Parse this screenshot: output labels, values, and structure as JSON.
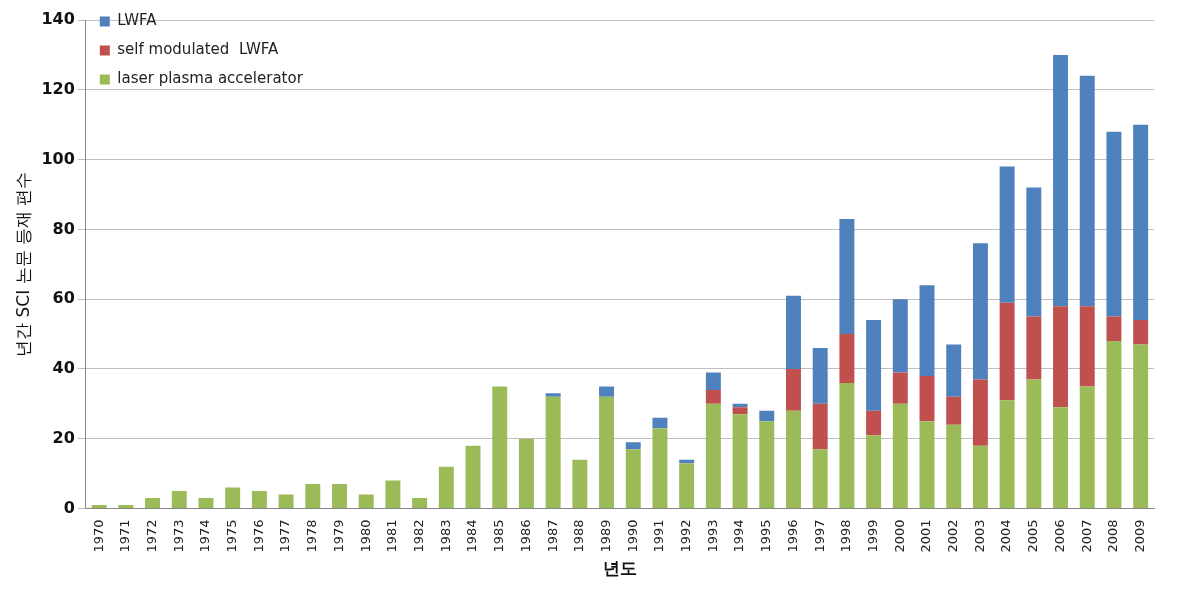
{
  "chart_data": {
    "type": "bar",
    "x_label": "년도",
    "y_label": "년간 SCI 논문 등재 편수",
    "categories": [
      "1970",
      "1971",
      "1972",
      "1973",
      "1974",
      "1975",
      "1976",
      "1977",
      "1978",
      "1979",
      "1980",
      "1981",
      "1982",
      "1983",
      "1984",
      "1985",
      "1986",
      "1987",
      "1988",
      "1989",
      "1990",
      "1991",
      "1992",
      "1993",
      "1994",
      "1995",
      "1996",
      "1997",
      "1998",
      "1999",
      "2000",
      "2001",
      "2002",
      "2003",
      "2004",
      "2005",
      "2006",
      "2007",
      "2008",
      "2009"
    ],
    "series": [
      {
        "name": "laser plasma accelerator",
        "color": "#9bbb59",
        "values": [
          1,
          1,
          3,
          5,
          3,
          6,
          5,
          4,
          7,
          7,
          4,
          8,
          3,
          12,
          18,
          35,
          20,
          32,
          14,
          32,
          17,
          23,
          13,
          30,
          27,
          25,
          28,
          17,
          36,
          21,
          30,
          25,
          24,
          18,
          31,
          37,
          29,
          35,
          48,
          47
        ]
      },
      {
        "name": "self modulated  LWFA",
        "color": "#c0504d",
        "values": [
          0,
          0,
          0,
          0,
          0,
          0,
          0,
          0,
          0,
          0,
          0,
          0,
          0,
          0,
          0,
          0,
          0,
          0,
          0,
          0,
          0,
          0,
          0,
          4,
          2,
          0,
          12,
          13,
          14,
          7,
          9,
          13,
          8,
          19,
          28,
          18,
          29,
          23,
          7,
          7
        ]
      },
      {
        "name": "LWFA",
        "color": "#4f81bd",
        "values": [
          0,
          0,
          0,
          0,
          0,
          0,
          0,
          0,
          0,
          0,
          0,
          0,
          0,
          0,
          0,
          0,
          0,
          1,
          0,
          3,
          2,
          3,
          1,
          5,
          1,
          3,
          21,
          16,
          33,
          26,
          21,
          26,
          15,
          39,
          39,
          37,
          72,
          66,
          53,
          56
        ]
      }
    ],
    "ylim": [
      0,
      140
    ],
    "yticks": [
      0,
      20,
      40,
      60,
      80,
      100,
      120,
      140
    ],
    "stacked": true,
    "grid": true,
    "legend": "top-left"
  }
}
